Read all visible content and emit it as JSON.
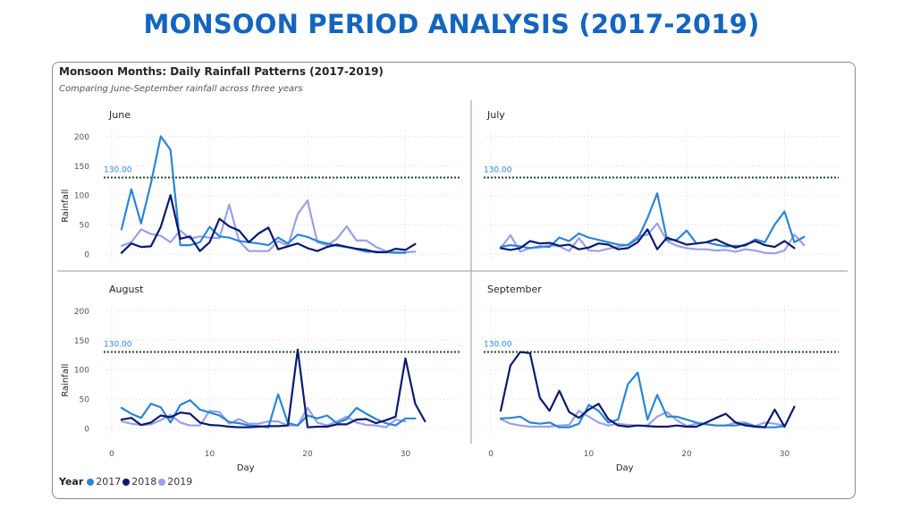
{
  "page_title": "MONSOON PERIOD ANALYSIS (2017-2019)",
  "card": {
    "title": "Monsoon Months: Daily Rainfall Patterns (2017-2019)",
    "subtitle": "Comparing June-September rainfall across three years"
  },
  "legend": {
    "title": "Year",
    "items": [
      {
        "label": "2017",
        "color": "#2b85d6"
      },
      {
        "label": "2018",
        "color": "#0a1a6e"
      },
      {
        "label": "2019",
        "color": "#9aa0e8"
      }
    ]
  },
  "chart_data": {
    "type": "line",
    "ylabel": "Rainfall",
    "xlabel": "Day",
    "ylim": [
      0,
      200
    ],
    "xlim": [
      0,
      31
    ],
    "y_ticks": [
      "0",
      "50",
      "100",
      "150",
      "200"
    ],
    "x_ticks": [
      "0",
      "10",
      "20",
      "30"
    ],
    "reference_line": {
      "value": 130,
      "label": "130.00"
    },
    "series_colors": {
      "2017": "#2b85d6",
      "2018": "#0a1a6e",
      "2019": "#9aa0e8"
    },
    "panels": [
      {
        "name": "June",
        "series": [
          {
            "name": "2017",
            "values": [
              42,
              110,
              52,
              120,
              200,
              177,
              15,
              15,
              20,
              46,
              30,
              28,
              22,
              20,
              18,
              15,
              28,
              18,
              33,
              29,
              22,
              18,
              14,
              12,
              8,
              4,
              4,
              3,
              2,
              2
            ]
          },
          {
            "name": "2018",
            "values": [
              2,
              18,
              12,
              13,
              46,
              100,
              26,
              30,
              5,
              20,
              60,
              47,
              40,
              20,
              35,
              45,
              8,
              13,
              18,
              10,
              5,
              12,
              16,
              12,
              9,
              7,
              3,
              3,
              9,
              7,
              17
            ]
          },
          {
            "name": "2019",
            "values": [
              14,
              20,
              42,
              34,
              31,
              20,
              40,
              26,
              30,
              28,
              27,
              84,
              22,
              5,
              5,
              5,
              22,
              14,
              68,
              91,
              20,
              15,
              26,
              47,
              23,
              23,
              12,
              5,
              3,
              3,
              4
            ]
          }
        ]
      },
      {
        "name": "July",
        "series": [
          {
            "name": "2017",
            "values": [
              12,
              15,
              13,
              10,
              13,
              12,
              28,
              22,
              35,
              28,
              24,
              20,
              16,
              15,
              26,
              61,
              103,
              24,
              24,
              40,
              18,
              20,
              16,
              13,
              14,
              14,
              25,
              20,
              50,
              72,
              20,
              29
            ]
          },
          {
            "name": "2018",
            "values": [
              10,
              7,
              10,
              22,
              18,
              19,
              14,
              16,
              8,
              11,
              18,
              16,
              8,
              10,
              20,
              42,
              8,
              28,
              22,
              16,
              18,
              20,
              25,
              17,
              11,
              16,
              22,
              15,
              12,
              22,
              10
            ]
          },
          {
            "name": "2019",
            "values": [
              10,
              32,
              4,
              10,
              11,
              15,
              13,
              5,
              27,
              6,
              5,
              9,
              12,
              16,
              30,
              33,
              52,
              22,
              14,
              10,
              8,
              8,
              6,
              7,
              4,
              8,
              6,
              2,
              1,
              6,
              33,
              15
            ]
          }
        ]
      },
      {
        "name": "August",
        "series": [
          {
            "name": "2017",
            "values": [
              35,
              25,
              18,
              42,
              36,
              10,
              40,
              48,
              32,
              27,
              22,
              11,
              9,
              5,
              4,
              2,
              58,
              9,
              5,
              22,
              17,
              22,
              9,
              16,
              35,
              25,
              16,
              9,
              5,
              17,
              17
            ]
          },
          {
            "name": "2018",
            "values": [
              15,
              18,
              6,
              10,
              22,
              19,
              27,
              25,
              10,
              6,
              5,
              3,
              2,
              2,
              3,
              4,
              4,
              5,
              134,
              2,
              3,
              3,
              7,
              7,
              15,
              16,
              9,
              14,
              20,
              119,
              42,
              12
            ]
          },
          {
            "name": "2019",
            "values": [
              12,
              8,
              6,
              7,
              14,
              23,
              10,
              5,
              5,
              30,
              28,
              8,
              16,
              8,
              8,
              12,
              12,
              5,
              5,
              35,
              10,
              5,
              12,
              20,
              10,
              6,
              5,
              2,
              15,
              12
            ]
          }
        ]
      },
      {
        "name": "September",
        "series": [
          {
            "name": "2017",
            "values": [
              17,
              18,
              20,
              10,
              8,
              10,
              2,
              2,
              8,
              40,
              30,
              10,
              15,
              75,
              95,
              15,
              57,
              20,
              20,
              15,
              10,
              7,
              5,
              5,
              5,
              8,
              4,
              2,
              2,
              4
            ]
          },
          {
            "name": "2018",
            "values": [
              30,
              107,
              130,
              128,
              52,
              30,
              64,
              28,
              18,
              32,
              42,
              16,
              5,
              3,
              5,
              4,
              3,
              3,
              5,
              3,
              3,
              10,
              18,
              25,
              10,
              5,
              3,
              2,
              32,
              3,
              37
            ]
          },
          {
            "name": "2019",
            "values": [
              16,
              8,
              5,
              3,
              3,
              3,
              5,
              6,
              30,
              20,
              10,
              5,
              8,
              6,
              5,
              5,
              20,
              28,
              14,
              4,
              8,
              7,
              5,
              5,
              10,
              10,
              4,
              10,
              8,
              5
            ]
          }
        ]
      }
    ]
  }
}
